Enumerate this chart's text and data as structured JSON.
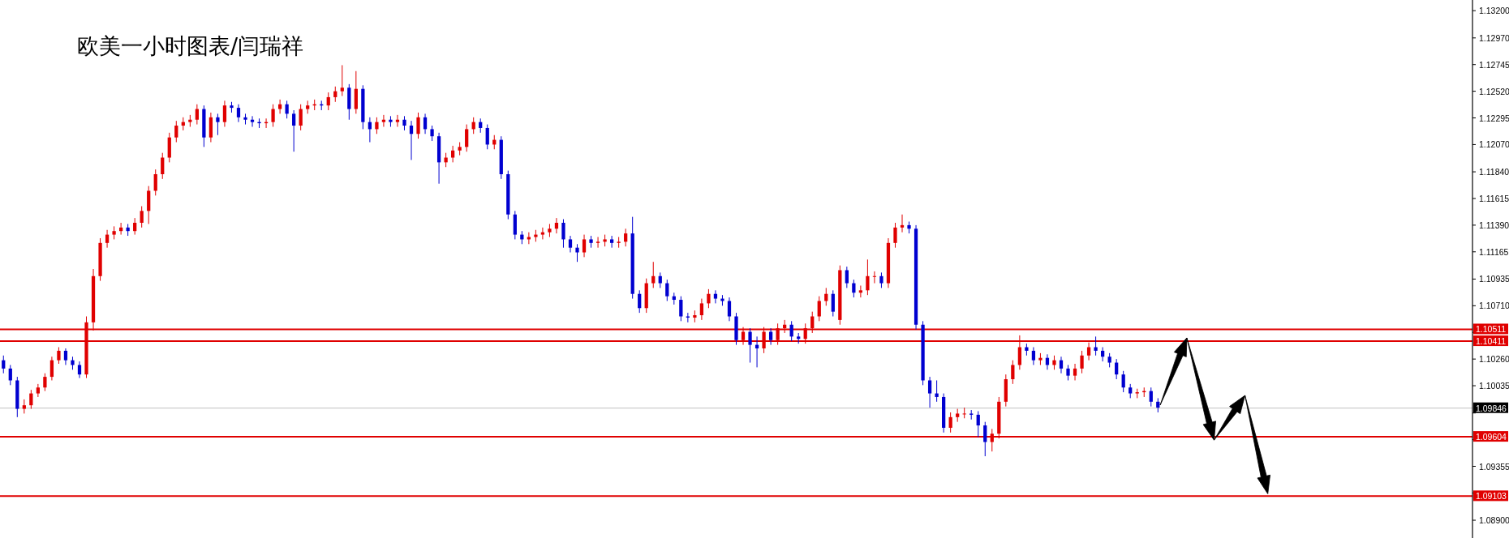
{
  "chart_data": {
    "type": "candlestick",
    "title": "欧美一小时图表/闫瑞祥",
    "categories": [
      null,
      null,
      null,
      null,
      null,
      null,
      null,
      null,
      null,
      null,
      null,
      null,
      null,
      null,
      null,
      null,
      null,
      null,
      null,
      null,
      null,
      null,
      null,
      null,
      null,
      null,
      null,
      null,
      null,
      null,
      null,
      null,
      null,
      null,
      null,
      null,
      null,
      null,
      null,
      null,
      null,
      null,
      null,
      null,
      null,
      null,
      null,
      null,
      null,
      null,
      null,
      null,
      null,
      null,
      null,
      null,
      null,
      null,
      null,
      null,
      null,
      null,
      null,
      null,
      null,
      null,
      null,
      null,
      null,
      null,
      null,
      null,
      null,
      null,
      null,
      null,
      null,
      null,
      null,
      null,
      null,
      null,
      null,
      null,
      null,
      null,
      null,
      null,
      null,
      null,
      null,
      null,
      null,
      null,
      null,
      null,
      null,
      null,
      null,
      null,
      null,
      null,
      null,
      null,
      null,
      null,
      null,
      null,
      null,
      null,
      null,
      null,
      null,
      null,
      null,
      null,
      null,
      null,
      null,
      null,
      null,
      null,
      null,
      null,
      null,
      null,
      null,
      null,
      null,
      null,
      null,
      null,
      null,
      null,
      null,
      null,
      null,
      null,
      null,
      null,
      null,
      null,
      null,
      null,
      null,
      null,
      null,
      null,
      null,
      null,
      null,
      null,
      null,
      null,
      null,
      null,
      null,
      null,
      null,
      null,
      null,
      null,
      null,
      null,
      null,
      null,
      null,
      null,
      null,
      null,
      null,
      null,
      null,
      null,
      null,
      null,
      null,
      null,
      null,
      null,
      null,
      null,
      null,
      null,
      null,
      null,
      null,
      null,
      null,
      null,
      null,
      null,
      null,
      null,
      null,
      null,
      null,
      null,
      null,
      null,
      null,
      null,
      null,
      null,
      null,
      null,
      null,
      null,
      null,
      null,
      null,
      null,
      null
    ],
    "ohlc": [
      [
        1.1025,
        1.1029,
        1.1014,
        1.1018
      ],
      [
        1.1018,
        1.1021,
        1.1004,
        1.1008
      ],
      [
        1.1008,
        1.1011,
        1.0977,
        1.0984
      ],
      [
        1.0984,
        1.0992,
        1.098,
        1.0987
      ],
      [
        1.0987,
        1.1,
        1.0984,
        1.0997
      ],
      [
        1.0997,
        1.1005,
        1.0994,
        1.1002
      ],
      [
        1.1002,
        1.1014,
        1.0999,
        1.1011
      ],
      [
        1.1011,
        1.1028,
        1.1008,
        1.1025
      ],
      [
        1.1025,
        1.1036,
        1.1022,
        1.1033
      ],
      [
        1.1033,
        1.1035,
        1.1021,
        1.1025
      ],
      [
        1.1025,
        1.1028,
        1.1017,
        1.1021
      ],
      [
        1.1021,
        1.1024,
        1.101,
        1.1013
      ],
      [
        1.1013,
        1.1062,
        1.101,
        1.1057
      ],
      [
        1.1057,
        1.1102,
        1.105,
        1.1096
      ],
      [
        1.1096,
        1.1128,
        1.1092,
        1.1124
      ],
      [
        1.1124,
        1.1135,
        1.112,
        1.1131
      ],
      [
        1.1131,
        1.1138,
        1.1127,
        1.1134
      ],
      [
        1.1134,
        1.1141,
        1.1131,
        1.1137
      ],
      [
        1.1137,
        1.114,
        1.113,
        1.1134
      ],
      [
        1.1134,
        1.1145,
        1.1131,
        1.1141
      ],
      [
        1.1141,
        1.1155,
        1.1137,
        1.1151
      ],
      [
        1.1151,
        1.1172,
        1.114,
        1.1168
      ],
      [
        1.1168,
        1.1186,
        1.1164,
        1.1182
      ],
      [
        1.1182,
        1.12,
        1.1178,
        1.1196
      ],
      [
        1.1196,
        1.1217,
        1.1192,
        1.1213
      ],
      [
        1.1213,
        1.1227,
        1.1209,
        1.1223
      ],
      [
        1.1223,
        1.123,
        1.1219,
        1.1226
      ],
      [
        1.1226,
        1.1232,
        1.1222,
        1.1228
      ],
      [
        1.1228,
        1.1241,
        1.1224,
        1.1237
      ],
      [
        1.1237,
        1.124,
        1.1205,
        1.1213
      ],
      [
        1.1213,
        1.1234,
        1.1209,
        1.123
      ],
      [
        1.123,
        1.1233,
        1.1215,
        1.1226
      ],
      [
        1.1226,
        1.1244,
        1.1222,
        1.124
      ],
      [
        1.124,
        1.1243,
        1.1234,
        1.1238
      ],
      [
        1.1238,
        1.1241,
        1.1226,
        1.123
      ],
      [
        1.123,
        1.1233,
        1.1224,
        1.1228
      ],
      [
        1.1228,
        1.1231,
        1.1222,
        1.1226
      ],
      [
        1.1226,
        1.1229,
        1.1221,
        1.1225
      ],
      [
        1.1225,
        1.1229,
        1.1221,
        1.1226
      ],
      [
        1.1226,
        1.1241,
        1.1222,
        1.1237
      ],
      [
        1.1237,
        1.1245,
        1.1233,
        1.1241
      ],
      [
        1.1241,
        1.1244,
        1.1229,
        1.1233
      ],
      [
        1.1233,
        1.1236,
        1.1201,
        1.1223
      ],
      [
        1.1223,
        1.1241,
        1.1219,
        1.1237
      ],
      [
        1.1237,
        1.1244,
        1.1233,
        1.124
      ],
      [
        1.124,
        1.1245,
        1.1236,
        1.1241
      ],
      [
        1.1241,
        1.1244,
        1.1236,
        1.124
      ],
      [
        1.124,
        1.1251,
        1.1236,
        1.1247
      ],
      [
        1.1247,
        1.1256,
        1.1243,
        1.1252
      ],
      [
        1.1252,
        1.1274,
        1.1248,
        1.1255
      ],
      [
        1.1255,
        1.1258,
        1.1228,
        1.1237
      ],
      [
        1.1237,
        1.1269,
        1.1233,
        1.1254
      ],
      [
        1.1254,
        1.1257,
        1.122,
        1.1226
      ],
      [
        1.1226,
        1.123,
        1.1209,
        1.122
      ],
      [
        1.122,
        1.123,
        1.1216,
        1.1226
      ],
      [
        1.1226,
        1.1232,
        1.1222,
        1.1228
      ],
      [
        1.1228,
        1.1231,
        1.1222,
        1.1226
      ],
      [
        1.1226,
        1.1232,
        1.1222,
        1.1228
      ],
      [
        1.1228,
        1.1231,
        1.1219,
        1.1223
      ],
      [
        1.1223,
        1.1227,
        1.1194,
        1.1216
      ],
      [
        1.1216,
        1.1234,
        1.1212,
        1.123
      ],
      [
        1.123,
        1.1233,
        1.1216,
        1.122
      ],
      [
        1.122,
        1.1223,
        1.121,
        1.1214
      ],
      [
        1.1214,
        1.1217,
        1.1174,
        1.1192
      ],
      [
        1.1192,
        1.12,
        1.1188,
        1.1196
      ],
      [
        1.1196,
        1.1206,
        1.1192,
        1.1202
      ],
      [
        1.1202,
        1.1209,
        1.1198,
        1.1205
      ],
      [
        1.1205,
        1.1224,
        1.1201,
        1.122
      ],
      [
        1.122,
        1.123,
        1.1216,
        1.1226
      ],
      [
        1.1226,
        1.1229,
        1.1217,
        1.1221
      ],
      [
        1.1221,
        1.1224,
        1.1203,
        1.1207
      ],
      [
        1.1207,
        1.1215,
        1.1203,
        1.1211
      ],
      [
        1.1211,
        1.1214,
        1.1178,
        1.1182
      ],
      [
        1.1182,
        1.1185,
        1.1144,
        1.1148
      ],
      [
        1.1148,
        1.1151,
        1.1127,
        1.1131
      ],
      [
        1.1131,
        1.1134,
        1.1123,
        1.1127
      ],
      [
        1.1127,
        1.1133,
        1.1123,
        1.1129
      ],
      [
        1.1129,
        1.1135,
        1.1125,
        1.1131
      ],
      [
        1.1131,
        1.1137,
        1.1127,
        1.1133
      ],
      [
        1.1133,
        1.114,
        1.1129,
        1.1136
      ],
      [
        1.1136,
        1.1145,
        1.1132,
        1.1141
      ],
      [
        1.1141,
        1.1144,
        1.112,
        1.1127
      ],
      [
        1.1127,
        1.113,
        1.1116,
        1.112
      ],
      [
        1.112,
        1.1123,
        1.1108,
        1.1116
      ],
      [
        1.1116,
        1.1131,
        1.1112,
        1.1127
      ],
      [
        1.1127,
        1.113,
        1.112,
        1.1124
      ],
      [
        1.1124,
        1.1129,
        1.112,
        1.1125
      ],
      [
        1.1125,
        1.1131,
        1.1121,
        1.1127
      ],
      [
        1.1127,
        1.113,
        1.112,
        1.1124
      ],
      [
        1.1124,
        1.1129,
        1.112,
        1.1125
      ],
      [
        1.1125,
        1.1136,
        1.1121,
        1.1132
      ],
      [
        1.1132,
        1.1146,
        1.1077,
        1.1081
      ],
      [
        1.1081,
        1.1084,
        1.1065,
        1.1069
      ],
      [
        1.1069,
        1.1094,
        1.1065,
        1.109
      ],
      [
        1.109,
        1.1108,
        1.1086,
        1.1096
      ],
      [
        1.1096,
        1.1099,
        1.1086,
        1.109
      ],
      [
        1.109,
        1.1093,
        1.1075,
        1.1079
      ],
      [
        1.1079,
        1.1082,
        1.1072,
        1.1076
      ],
      [
        1.1076,
        1.1079,
        1.1058,
        1.1062
      ],
      [
        1.1062,
        1.1065,
        1.1057,
        1.1061
      ],
      [
        1.1061,
        1.1067,
        1.1057,
        1.1063
      ],
      [
        1.1063,
        1.1077,
        1.1059,
        1.1073
      ],
      [
        1.1073,
        1.1085,
        1.1069,
        1.1081
      ],
      [
        1.1081,
        1.1084,
        1.1073,
        1.1077
      ],
      [
        1.1077,
        1.108,
        1.1071,
        1.1075
      ],
      [
        1.1075,
        1.1078,
        1.1058,
        1.1062
      ],
      [
        1.1062,
        1.1065,
        1.1038,
        1.1042
      ],
      [
        1.1042,
        1.1053,
        1.1038,
        1.1049
      ],
      [
        1.1049,
        1.1052,
        1.1023,
        1.1038
      ],
      [
        1.1038,
        1.1045,
        1.1019,
        1.1035
      ],
      [
        1.1035,
        1.1053,
        1.1031,
        1.1049
      ],
      [
        1.1049,
        1.1052,
        1.1038,
        1.1042
      ],
      [
        1.1042,
        1.1056,
        1.1038,
        1.1052
      ],
      [
        1.1052,
        1.1059,
        1.1048,
        1.1055
      ],
      [
        1.1055,
        1.1058,
        1.1041,
        1.1045
      ],
      [
        1.1045,
        1.1048,
        1.1039,
        1.1043
      ],
      [
        1.1043,
        1.1056,
        1.1039,
        1.1052
      ],
      [
        1.1052,
        1.1066,
        1.1048,
        1.1062
      ],
      [
        1.1062,
        1.1079,
        1.1058,
        1.1075
      ],
      [
        1.1075,
        1.1086,
        1.1071,
        1.1081
      ],
      [
        1.1081,
        1.1084,
        1.1062,
        1.1066
      ],
      [
        1.1059,
        1.1105,
        1.1055,
        1.1101
      ],
      [
        1.1101,
        1.1104,
        1.1086,
        1.109
      ],
      [
        1.109,
        1.1093,
        1.1078,
        1.1082
      ],
      [
        1.1082,
        1.1088,
        1.1078,
        1.1084
      ],
      [
        1.1084,
        1.111,
        1.108,
        1.1096
      ],
      [
        1.1096,
        1.11,
        1.109,
        1.1096
      ],
      [
        1.1096,
        1.1099,
        1.1086,
        1.109
      ],
      [
        1.109,
        1.1128,
        1.1086,
        1.1124
      ],
      [
        1.1124,
        1.1141,
        1.112,
        1.1137
      ],
      [
        1.1137,
        1.1148,
        1.1133,
        1.1139
      ],
      [
        1.1139,
        1.1142,
        1.1132,
        1.1136
      ],
      [
        1.1136,
        1.1139,
        1.1051,
        1.1055
      ],
      [
        1.1055,
        1.1058,
        1.1004,
        1.1008
      ],
      [
        1.1008,
        1.1011,
        1.0985,
        1.0997
      ],
      [
        1.0997,
        1.1008,
        1.099,
        1.0994
      ],
      [
        1.0994,
        1.0997,
        1.0964,
        1.0968
      ],
      [
        1.0968,
        1.0981,
        1.0964,
        1.0977
      ],
      [
        1.0977,
        1.0984,
        1.0973,
        1.098
      ],
      [
        1.098,
        1.0985,
        1.0976,
        1.098
      ],
      [
        1.098,
        1.0983,
        1.0975,
        1.0979
      ],
      [
        1.0979,
        1.0982,
        1.096,
        1.097
      ],
      [
        1.097,
        1.0973,
        1.0944,
        1.0956
      ],
      [
        1.0956,
        1.0967,
        1.0948,
        1.0963
      ],
      [
        1.0963,
        1.0994,
        1.0959,
        1.099
      ],
      [
        1.099,
        1.1013,
        1.0986,
        1.1009
      ],
      [
        1.1009,
        1.1025,
        1.1005,
        1.1021
      ],
      [
        1.1021,
        1.1046,
        1.1017,
        1.1036
      ],
      [
        1.1036,
        1.1039,
        1.1029,
        1.1033
      ],
      [
        1.1033,
        1.1036,
        1.1021,
        1.1025
      ],
      [
        1.1025,
        1.1031,
        1.1021,
        1.1027
      ],
      [
        1.1027,
        1.103,
        1.1017,
        1.1021
      ],
      [
        1.1021,
        1.1029,
        1.1017,
        1.1025
      ],
      [
        1.1025,
        1.1028,
        1.1014,
        1.1018
      ],
      [
        1.1018,
        1.1021,
        1.1008,
        1.1012
      ],
      [
        1.1012,
        1.1022,
        1.1008,
        1.1018
      ],
      [
        1.1018,
        1.1033,
        1.1014,
        1.1029
      ],
      [
        1.1029,
        1.104,
        1.1025,
        1.1036
      ],
      [
        1.1036,
        1.1045,
        1.1029,
        1.1033
      ],
      [
        1.1033,
        1.1036,
        1.1024,
        1.1028
      ],
      [
        1.1028,
        1.1031,
        1.1019,
        1.1023
      ],
      [
        1.1023,
        1.1026,
        1.1009,
        1.1013
      ],
      [
        1.1013,
        1.1016,
        1.0998,
        1.1002
      ],
      [
        1.1002,
        1.1005,
        1.0993,
        1.0997
      ],
      [
        1.0997,
        1.1001,
        1.0993,
        1.0998
      ],
      [
        1.0998,
        1.1002,
        1.0994,
        1.0999
      ],
      [
        1.0999,
        1.1002,
        1.0986,
        1.099
      ],
      [
        1.099,
        1.0993,
        1.0981,
        1.0985
      ],
      null,
      null,
      null,
      null,
      null,
      null,
      null,
      null,
      null,
      null,
      null,
      null,
      null,
      null,
      null,
      null,
      null,
      null,
      null,
      null,
      null,
      null,
      null,
      null,
      null,
      null,
      null,
      null,
      null,
      null,
      null,
      null,
      null,
      null,
      null,
      null,
      null,
      null,
      null,
      null,
      null,
      null,
      null,
      null,
      null
    ],
    "ylim": [
      1.0875,
      1.1329
    ],
    "yticks": [
      {
        "value": 1.132,
        "label": "1.13200"
      },
      {
        "value": 1.1297,
        "label": "1.12970"
      },
      {
        "value": 1.12745,
        "label": "1.12745"
      },
      {
        "value": 1.1252,
        "label": "1.12520"
      },
      {
        "value": 1.12295,
        "label": "1.12295"
      },
      {
        "value": 1.1207,
        "label": "1.12070"
      },
      {
        "value": 1.1184,
        "label": "1.11840"
      },
      {
        "value": 1.11615,
        "label": "1.11615"
      },
      {
        "value": 1.1139,
        "label": "1.11390"
      },
      {
        "value": 1.11165,
        "label": "1.11165"
      },
      {
        "value": 1.10935,
        "label": "1.10935"
      },
      {
        "value": 1.1071,
        "label": "1.10710"
      },
      {
        "value": 1.10485,
        "label": null
      },
      {
        "value": 1.1026,
        "label": "1.10260"
      },
      {
        "value": 1.10035,
        "label": "1.10035"
      },
      {
        "value": 1.09805,
        "label": null
      },
      {
        "value": 1.0958,
        "label": null
      },
      {
        "value": 1.09355,
        "label": "1.09355"
      },
      {
        "value": 1.0913,
        "label": null
      },
      {
        "value": 1.089,
        "label": "1.08900"
      }
    ],
    "ref_lines": [
      {
        "axis": "y",
        "value": 1.10511,
        "label": "1.10511",
        "color": "#e00000"
      },
      {
        "axis": "y",
        "value": 1.10411,
        "label": "1.10411",
        "color": "#e00000"
      },
      {
        "axis": "y",
        "value": 1.09846,
        "label": "1.09846",
        "color": "#c0c0c0"
      },
      {
        "axis": "y",
        "value": 1.09604,
        "label": "1.09604",
        "color": "#e00000"
      },
      {
        "axis": "y",
        "value": 1.09103,
        "label": "1.09103",
        "color": "#e00000"
      }
    ],
    "grid": false
  }
}
